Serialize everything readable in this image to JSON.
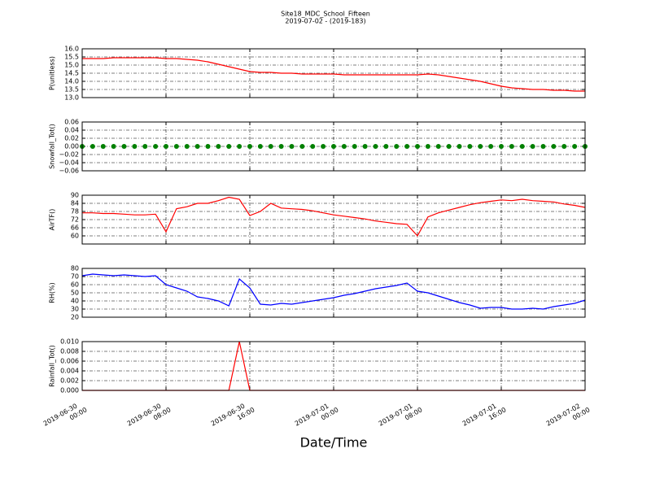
{
  "chart_data": [
    {
      "type": "line",
      "title": "Site18_MDC_School_Fifteen",
      "subtitle": "2019-07-02 - (2019-183)",
      "ylabel": "P(unitless)",
      "color": "#ff0000",
      "grid": true,
      "x": [
        "2019-06-30 00:00",
        "2019-06-30 01:00",
        "2019-06-30 02:00",
        "2019-06-30 03:00",
        "2019-06-30 04:00",
        "2019-06-30 05:00",
        "2019-06-30 06:00",
        "2019-06-30 07:00",
        "2019-06-30 08:00",
        "2019-06-30 09:00",
        "2019-06-30 10:00",
        "2019-06-30 11:00",
        "2019-06-30 12:00",
        "2019-06-30 13:00",
        "2019-06-30 14:00",
        "2019-06-30 15:00",
        "2019-06-30 16:00",
        "2019-06-30 17:00",
        "2019-06-30 18:00",
        "2019-06-30 19:00",
        "2019-06-30 20:00",
        "2019-06-30 21:00",
        "2019-06-30 22:00",
        "2019-06-30 23:00",
        "2019-07-01 00:00",
        "2019-07-01 01:00",
        "2019-07-01 02:00",
        "2019-07-01 03:00",
        "2019-07-01 04:00",
        "2019-07-01 05:00",
        "2019-07-01 06:00",
        "2019-07-01 07:00",
        "2019-07-01 08:00",
        "2019-07-01 09:00",
        "2019-07-01 10:00",
        "2019-07-01 11:00",
        "2019-07-01 12:00",
        "2019-07-01 13:00",
        "2019-07-01 14:00",
        "2019-07-01 15:00",
        "2019-07-01 16:00",
        "2019-07-01 17:00",
        "2019-07-01 18:00",
        "2019-07-01 19:00",
        "2019-07-01 20:00",
        "2019-07-01 21:00",
        "2019-07-01 22:00",
        "2019-07-01 23:00",
        "2019-07-02 00:00"
      ],
      "values": [
        15.4,
        15.4,
        15.4,
        15.45,
        15.45,
        15.45,
        15.45,
        15.45,
        15.4,
        15.4,
        15.35,
        15.3,
        15.2,
        15.05,
        14.9,
        14.75,
        14.6,
        14.55,
        14.55,
        14.5,
        14.5,
        14.45,
        14.45,
        14.45,
        14.45,
        14.4,
        14.4,
        14.4,
        14.4,
        14.4,
        14.4,
        14.4,
        14.4,
        14.45,
        14.4,
        14.3,
        14.2,
        14.1,
        14.0,
        13.85,
        13.7,
        13.6,
        13.55,
        13.5,
        13.5,
        13.45,
        13.45,
        13.4,
        13.4
      ],
      "xlim": [
        "2019-06-30 00:00",
        "2019-07-02 00:00"
      ],
      "xticks": [
        "2019-06-30 00:00",
        "2019-06-30 08:00",
        "2019-06-30 16:00",
        "2019-07-01 00:00",
        "2019-07-01 08:00",
        "2019-07-01 16:00",
        "2019-07-02 00:00"
      ],
      "ylim": [
        13,
        16
      ],
      "yticks": [
        {
          "value": 13,
          "label": "13.0"
        },
        13.5,
        {
          "value": 14,
          "label": "14.0"
        },
        14.5,
        {
          "value": 15,
          "label": "15.0"
        },
        15.5,
        {
          "value": 16,
          "label": "16.0"
        }
      ]
    },
    {
      "type": "scatter",
      "ylabel": "Snowfall_Tot()",
      "color": "#008000",
      "grid": true,
      "x": [
        "2019-06-30 00:00",
        "2019-06-30 01:00",
        "2019-06-30 02:00",
        "2019-06-30 03:00",
        "2019-06-30 04:00",
        "2019-06-30 05:00",
        "2019-06-30 06:00",
        "2019-06-30 07:00",
        "2019-06-30 08:00",
        "2019-06-30 09:00",
        "2019-06-30 10:00",
        "2019-06-30 11:00",
        "2019-06-30 12:00",
        "2019-06-30 13:00",
        "2019-06-30 14:00",
        "2019-06-30 15:00",
        "2019-06-30 16:00",
        "2019-06-30 17:00",
        "2019-06-30 18:00",
        "2019-06-30 19:00",
        "2019-06-30 20:00",
        "2019-06-30 21:00",
        "2019-06-30 22:00",
        "2019-06-30 23:00",
        "2019-07-01 00:00",
        "2019-07-01 01:00",
        "2019-07-01 02:00",
        "2019-07-01 03:00",
        "2019-07-01 04:00",
        "2019-07-01 05:00",
        "2019-07-01 06:00",
        "2019-07-01 07:00",
        "2019-07-01 08:00",
        "2019-07-01 09:00",
        "2019-07-01 10:00",
        "2019-07-01 11:00",
        "2019-07-01 12:00",
        "2019-07-01 13:00",
        "2019-07-01 14:00",
        "2019-07-01 15:00",
        "2019-07-01 16:00",
        "2019-07-01 17:00",
        "2019-07-01 18:00",
        "2019-07-01 19:00",
        "2019-07-01 20:00",
        "2019-07-01 21:00",
        "2019-07-01 22:00",
        "2019-07-01 23:00",
        "2019-07-02 00:00"
      ],
      "values": [
        0,
        0,
        0,
        0,
        0,
        0,
        0,
        0,
        0,
        0,
        0,
        0,
        0,
        0,
        0,
        0,
        0,
        0,
        0,
        0,
        0,
        0,
        0,
        0,
        0,
        0,
        0,
        0,
        0,
        0,
        0,
        0,
        0,
        0,
        0,
        0,
        0,
        0,
        0,
        0,
        0,
        0,
        0,
        0,
        0,
        0,
        0,
        0,
        0
      ],
      "xlim": [
        "2019-06-30 00:00",
        "2019-07-02 00:00"
      ],
      "xticks": [
        "2019-06-30 00:00",
        "2019-06-30 08:00",
        "2019-06-30 16:00",
        "2019-07-01 00:00",
        "2019-07-01 08:00",
        "2019-07-01 16:00",
        "2019-07-02 00:00"
      ],
      "ylim": [
        -0.06,
        0.06
      ],
      "yticks": [
        {
          "value": -0.06,
          "label": "−0.06"
        },
        {
          "value": -0.04,
          "label": "−0.04"
        },
        {
          "value": -0.02,
          "label": "−0.02"
        },
        {
          "value": 0,
          "label": "0.00"
        },
        0.02,
        0.04,
        0.06
      ]
    },
    {
      "type": "line",
      "ylabel": "AirTF()",
      "color": "#ff0000",
      "grid": true,
      "x": [
        "2019-06-30 00:00",
        "2019-06-30 01:00",
        "2019-06-30 02:00",
        "2019-06-30 03:00",
        "2019-06-30 04:00",
        "2019-06-30 05:00",
        "2019-06-30 06:00",
        "2019-06-30 07:00",
        "2019-06-30 08:00",
        "2019-06-30 09:00",
        "2019-06-30 10:00",
        "2019-06-30 11:00",
        "2019-06-30 12:00",
        "2019-06-30 13:00",
        "2019-06-30 14:00",
        "2019-06-30 15:00",
        "2019-06-30 16:00",
        "2019-06-30 17:00",
        "2019-06-30 18:00",
        "2019-06-30 19:00",
        "2019-06-30 20:00",
        "2019-06-30 21:00",
        "2019-06-30 22:00",
        "2019-06-30 23:00",
        "2019-07-01 00:00",
        "2019-07-01 01:00",
        "2019-07-01 02:00",
        "2019-07-01 03:00",
        "2019-07-01 04:00",
        "2019-07-01 05:00",
        "2019-07-01 06:00",
        "2019-07-01 07:00",
        "2019-07-01 08:00",
        "2019-07-01 09:00",
        "2019-07-01 10:00",
        "2019-07-01 11:00",
        "2019-07-01 12:00",
        "2019-07-01 13:00",
        "2019-07-01 14:00",
        "2019-07-01 15:00",
        "2019-07-01 16:00",
        "2019-07-01 17:00",
        "2019-07-01 18:00",
        "2019-07-01 19:00",
        "2019-07-01 20:00",
        "2019-07-01 21:00",
        "2019-07-01 22:00",
        "2019-07-01 23:00",
        "2019-07-02 00:00"
      ],
      "values": [
        77,
        77,
        76.5,
        76.5,
        76,
        75.5,
        75.5,
        76,
        63,
        80,
        81.5,
        84,
        84,
        86,
        88.5,
        87,
        75,
        78,
        84,
        80.5,
        80,
        79.5,
        78.5,
        77,
        75.5,
        74.5,
        73.5,
        72.5,
        71,
        70,
        69,
        68.5,
        60,
        74,
        77,
        79,
        81,
        83,
        84.5,
        85.5,
        86.5,
        86,
        87,
        86,
        85.5,
        85,
        83.5,
        82.5,
        81
      ],
      "xlim": [
        "2019-06-30 00:00",
        "2019-07-02 00:00"
      ],
      "xticks": [
        "2019-06-30 00:00",
        "2019-06-30 08:00",
        "2019-06-30 16:00",
        "2019-07-01 00:00",
        "2019-07-01 08:00",
        "2019-07-01 16:00",
        "2019-07-02 00:00"
      ],
      "ylim": [
        54,
        90
      ],
      "yticks": [
        60,
        66,
        72,
        78,
        84,
        90
      ]
    },
    {
      "type": "line",
      "ylabel": "RH(%)",
      "color": "#0000ff",
      "grid": true,
      "x": [
        "2019-06-30 00:00",
        "2019-06-30 01:00",
        "2019-06-30 02:00",
        "2019-06-30 03:00",
        "2019-06-30 04:00",
        "2019-06-30 05:00",
        "2019-06-30 06:00",
        "2019-06-30 07:00",
        "2019-06-30 08:00",
        "2019-06-30 09:00",
        "2019-06-30 10:00",
        "2019-06-30 11:00",
        "2019-06-30 12:00",
        "2019-06-30 13:00",
        "2019-06-30 14:00",
        "2019-06-30 15:00",
        "2019-06-30 16:00",
        "2019-06-30 17:00",
        "2019-06-30 18:00",
        "2019-06-30 19:00",
        "2019-06-30 20:00",
        "2019-06-30 21:00",
        "2019-06-30 22:00",
        "2019-06-30 23:00",
        "2019-07-01 00:00",
        "2019-07-01 01:00",
        "2019-07-01 02:00",
        "2019-07-01 03:00",
        "2019-07-01 04:00",
        "2019-07-01 05:00",
        "2019-07-01 06:00",
        "2019-07-01 07:00",
        "2019-07-01 08:00",
        "2019-07-01 09:00",
        "2019-07-01 10:00",
        "2019-07-01 11:00",
        "2019-07-01 12:00",
        "2019-07-01 13:00",
        "2019-07-01 14:00",
        "2019-07-01 15:00",
        "2019-07-01 16:00",
        "2019-07-01 17:00",
        "2019-07-01 18:00",
        "2019-07-01 19:00",
        "2019-07-01 20:00",
        "2019-07-01 21:00",
        "2019-07-01 22:00",
        "2019-07-01 23:00",
        "2019-07-02 00:00"
      ],
      "values": [
        71,
        73,
        72,
        71,
        72,
        71,
        70,
        71,
        60,
        56,
        52,
        45,
        43,
        40,
        34,
        67,
        56,
        36,
        35,
        37,
        36,
        38,
        40,
        42,
        44,
        47,
        49,
        52,
        55,
        57,
        59,
        62,
        52,
        50,
        46,
        42,
        38,
        35,
        31,
        32,
        32,
        30,
        30,
        31,
        30,
        33,
        35,
        37,
        41
      ],
      "xlim": [
        "2019-06-30 00:00",
        "2019-07-02 00:00"
      ],
      "xticks": [
        "2019-06-30 00:00",
        "2019-06-30 08:00",
        "2019-06-30 16:00",
        "2019-07-01 00:00",
        "2019-07-01 08:00",
        "2019-07-01 16:00",
        "2019-07-02 00:00"
      ],
      "ylim": [
        20,
        80
      ],
      "yticks": [
        20,
        30,
        40,
        50,
        60,
        70,
        80
      ]
    },
    {
      "type": "line",
      "ylabel": "Rainfall_Tot()",
      "xlabel": "Date/Time",
      "color": "#ff0000",
      "grid": true,
      "x": [
        "2019-06-30 00:00",
        "2019-06-30 01:00",
        "2019-06-30 02:00",
        "2019-06-30 03:00",
        "2019-06-30 04:00",
        "2019-06-30 05:00",
        "2019-06-30 06:00",
        "2019-06-30 07:00",
        "2019-06-30 08:00",
        "2019-06-30 09:00",
        "2019-06-30 10:00",
        "2019-06-30 11:00",
        "2019-06-30 12:00",
        "2019-06-30 13:00",
        "2019-06-30 14:00",
        "2019-06-30 15:00",
        "2019-06-30 16:00",
        "2019-06-30 17:00",
        "2019-06-30 18:00",
        "2019-06-30 19:00",
        "2019-06-30 20:00",
        "2019-06-30 21:00",
        "2019-06-30 22:00",
        "2019-06-30 23:00",
        "2019-07-01 00:00",
        "2019-07-01 01:00",
        "2019-07-01 02:00",
        "2019-07-01 03:00",
        "2019-07-01 04:00",
        "2019-07-01 05:00",
        "2019-07-01 06:00",
        "2019-07-01 07:00",
        "2019-07-01 08:00",
        "2019-07-01 09:00",
        "2019-07-01 10:00",
        "2019-07-01 11:00",
        "2019-07-01 12:00",
        "2019-07-01 13:00",
        "2019-07-01 14:00",
        "2019-07-01 15:00",
        "2019-07-01 16:00",
        "2019-07-01 17:00",
        "2019-07-01 18:00",
        "2019-07-01 19:00",
        "2019-07-01 20:00",
        "2019-07-01 21:00",
        "2019-07-01 22:00",
        "2019-07-01 23:00",
        "2019-07-02 00:00"
      ],
      "values": [
        0,
        0,
        0,
        0,
        0,
        0,
        0,
        0,
        0,
        0,
        0,
        0,
        0,
        0,
        0,
        0.01,
        0,
        0,
        0,
        0,
        0,
        0,
        0,
        0,
        0,
        0,
        0,
        0,
        0,
        0,
        0,
        0,
        0,
        0,
        0,
        0,
        0,
        0,
        0,
        0,
        0,
        0,
        0,
        0,
        0,
        0,
        0,
        0,
        0
      ],
      "xlim": [
        "2019-06-30 00:00",
        "2019-07-02 00:00"
      ],
      "xticks": [
        "2019-06-30 00:00",
        "2019-06-30 08:00",
        "2019-06-30 16:00",
        "2019-07-01 00:00",
        "2019-07-01 08:00",
        "2019-07-01 16:00",
        "2019-07-02 00:00"
      ],
      "ylim": [
        0,
        0.01
      ],
      "yticks": [
        {
          "value": 0,
          "label": "0.000"
        },
        0.002,
        0.004,
        0.006,
        0.008,
        {
          "value": 0.01,
          "label": "0.010"
        }
      ]
    }
  ]
}
